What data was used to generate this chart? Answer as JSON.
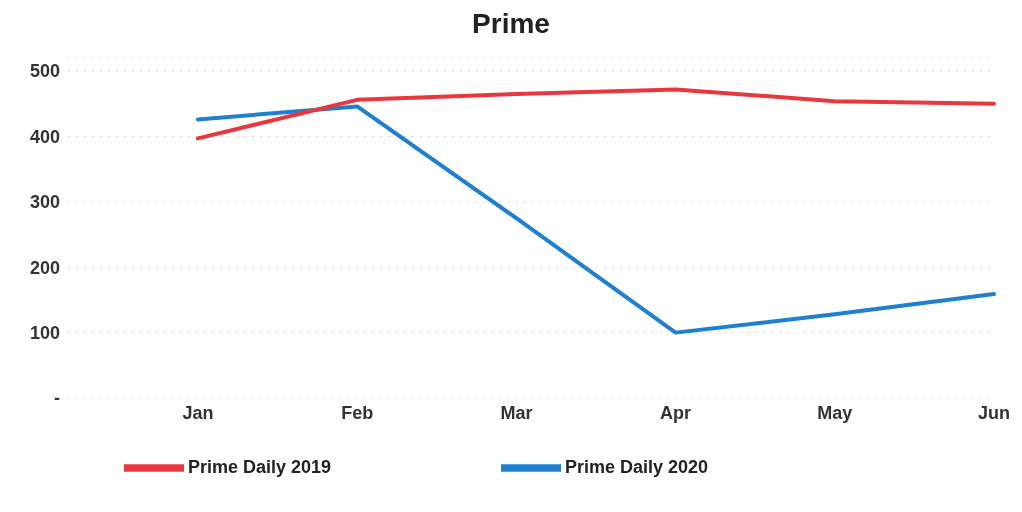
{
  "chart_data": {
    "type": "line",
    "title": "Prime",
    "categories": [
      "Jan",
      "Feb",
      "Mar",
      "Apr",
      "May",
      "Jun"
    ],
    "series": [
      {
        "name": "Prime Daily 2020",
        "color": "#1f7fd0",
        "values": [
          426,
          446,
          275,
          100,
          128,
          159
        ]
      },
      {
        "name": "Prime Daily 2019",
        "color": "#e8383d",
        "values": [
          397,
          456,
          465,
          472,
          454,
          450
        ]
      }
    ],
    "ylim": [
      0,
      520
    ],
    "yticks": [
      {
        "value": 0,
        "label": "-"
      },
      100,
      200,
      300,
      400,
      500
    ],
    "grid": "y",
    "legend": "bottom",
    "marker": "none",
    "line_style": "solid"
  }
}
